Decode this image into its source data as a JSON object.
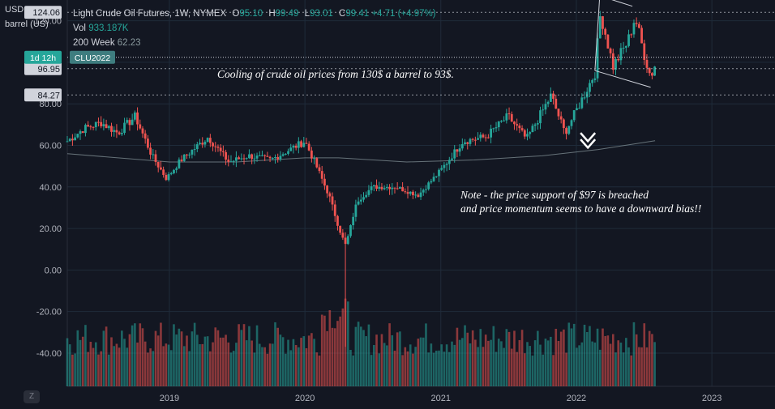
{
  "header": {
    "symbol": "Light Crude Oil Futures, 1W, NYMEX",
    "ohlc": [
      {
        "k": "O",
        "v": "95.10"
      },
      {
        "k": "H",
        "v": "99.49"
      },
      {
        "k": "L",
        "v": "93.01"
      },
      {
        "k": "C",
        "v": "99.41"
      }
    ],
    "change": "+4.71 (+4.97%)",
    "vol_label": "Vol",
    "vol_value": "933.187K",
    "ma_label": "200 Week",
    "ma_value": "62.23"
  },
  "units": {
    "line1": "USD",
    "line2": "barrel (US)"
  },
  "colors": {
    "background": "#131722",
    "up": "#26a69a",
    "down": "#ef5350",
    "grid": "#1f2b3a",
    "text": "#b2b5be"
  },
  "annotations": {
    "top": "Cooling of crude oil prices from 130$ a barrel to 93$.",
    "note_line1": "Note - the price support of $97 is breached",
    "note_line2": "and price momentum  seems to have a downward bias!!"
  },
  "buttons": {
    "reset_scale": "Z"
  },
  "chart_data": {
    "type": "candlestick",
    "title": "Light Crude Oil Futures, 1W, NYMEX",
    "ylabel": "barrel (US)",
    "currency": "USD",
    "ylim": [
      -56,
      130
    ],
    "y_ticks": [
      -40,
      -20,
      0,
      20,
      40,
      60,
      80,
      100,
      120
    ],
    "y_tick_labels": [
      "-40.00",
      "-20.00",
      "0.00",
      "20.00",
      "40.00",
      "60.00",
      "80.00",
      "100.00",
      "120.00"
    ],
    "x_range": [
      "2018-04-01",
      "2023-06-20"
    ],
    "x_ticks": [
      "2019-01-01",
      "2020-01-01",
      "2021-01-01",
      "2022-01-01",
      "2023-01-01"
    ],
    "x_tick_labels": [
      "2019",
      "2020",
      "2021",
      "2022",
      "2023"
    ],
    "grid": true,
    "price_labels": [
      {
        "label": "124.06",
        "value": 124.06
      },
      {
        "label": "96.95",
        "value": 96.95
      },
      {
        "label": "84.27",
        "value": 84.27
      }
    ],
    "countdown_label": "1d 12h",
    "contract_label": "CLU2022",
    "price_anchors": [
      [
        "2018-04-01",
        62
      ],
      [
        "2018-05-15",
        68
      ],
      [
        "2018-07-01",
        71
      ],
      [
        "2018-08-15",
        66
      ],
      [
        "2018-10-01",
        74
      ],
      [
        "2018-11-15",
        55
      ],
      [
        "2018-12-24",
        44
      ],
      [
        "2019-02-01",
        53
      ],
      [
        "2019-04-15",
        64
      ],
      [
        "2019-06-10",
        52
      ],
      [
        "2019-08-01",
        55
      ],
      [
        "2019-10-01",
        53
      ],
      [
        "2020-01-01",
        62
      ],
      [
        "2020-02-01",
        50
      ],
      [
        "2020-03-10",
        34
      ],
      [
        "2020-04-01",
        20
      ],
      [
        "2020-04-20",
        12
      ],
      [
        "2020-05-20",
        33
      ],
      [
        "2020-07-01",
        40
      ],
      [
        "2020-09-01",
        40
      ],
      [
        "2020-11-01",
        36
      ],
      [
        "2021-01-01",
        48
      ],
      [
        "2021-03-01",
        62
      ],
      [
        "2021-05-01",
        64
      ],
      [
        "2021-07-01",
        74
      ],
      [
        "2021-08-20",
        63
      ],
      [
        "2021-10-25",
        84
      ],
      [
        "2021-12-01",
        66
      ],
      [
        "2022-01-10",
        80
      ],
      [
        "2022-02-20",
        95
      ],
      [
        "2022-03-07",
        124
      ],
      [
        "2022-04-10",
        98
      ],
      [
        "2022-05-20",
        110
      ],
      [
        "2022-06-08",
        122
      ],
      [
        "2022-07-01",
        105
      ],
      [
        "2022-07-20",
        93
      ],
      [
        "2022-08-01",
        99
      ]
    ],
    "ma_200w": [
      [
        "2018-04-01",
        56
      ],
      [
        "2019-01-01",
        52
      ],
      [
        "2019-07-01",
        52
      ],
      [
        "2020-01-01",
        54
      ],
      [
        "2020-04-01",
        54
      ],
      [
        "2020-10-01",
        52
      ],
      [
        "2021-04-01",
        53
      ],
      [
        "2021-10-01",
        55
      ],
      [
        "2022-03-01",
        58
      ],
      [
        "2022-08-01",
        62.23
      ]
    ],
    "volume_bars_height_scale_note": "volume histogram drawn in lower pane"
  }
}
